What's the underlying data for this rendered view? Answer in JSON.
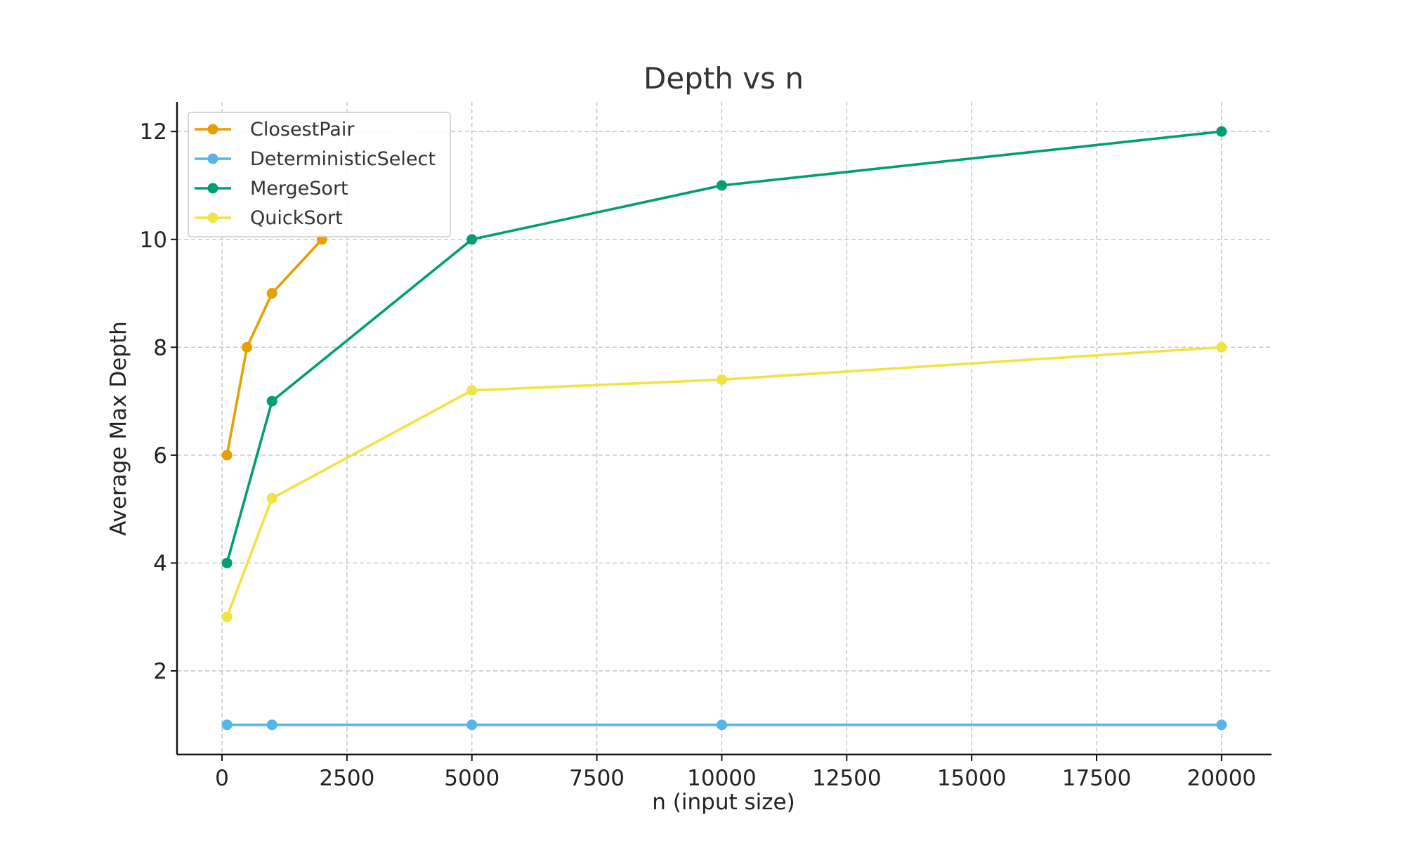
{
  "chart_data": {
    "type": "line",
    "title": "Depth vs n",
    "xlabel": "n (input size)",
    "ylabel": "Average Max Depth",
    "xlim": [
      -900,
      21000
    ],
    "ylim": [
      0.45,
      12.55
    ],
    "xticks": [
      0,
      2500,
      5000,
      7500,
      10000,
      12500,
      15000,
      17500,
      20000
    ],
    "xtick_labels": [
      "0",
      "2500",
      "5000",
      "7500",
      "10000",
      "12500",
      "15000",
      "17500",
      "20000"
    ],
    "yticks": [
      2,
      4,
      6,
      8,
      10,
      12
    ],
    "ytick_labels": [
      "2",
      "4",
      "6",
      "8",
      "10",
      "12"
    ],
    "grid": true,
    "legend_position": "top-left",
    "series": [
      {
        "name": "ClosestPair",
        "color": "#E69F00",
        "x": [
          100,
          500,
          1000,
          2000
        ],
        "y": [
          6,
          8,
          9,
          10
        ]
      },
      {
        "name": "DeterministicSelect",
        "color": "#56B4E9",
        "x": [
          100,
          1000,
          5000,
          10000,
          20000
        ],
        "y": [
          1,
          1,
          1,
          1,
          1
        ]
      },
      {
        "name": "MergeSort",
        "color": "#009E73",
        "x": [
          100,
          1000,
          5000,
          10000,
          20000
        ],
        "y": [
          4,
          7,
          10,
          11,
          12
        ]
      },
      {
        "name": "QuickSort",
        "color": "#F0E442",
        "x": [
          100,
          1000,
          5000,
          10000,
          20000
        ],
        "y": [
          3,
          5.2,
          7.2,
          7.4,
          8
        ]
      }
    ]
  }
}
